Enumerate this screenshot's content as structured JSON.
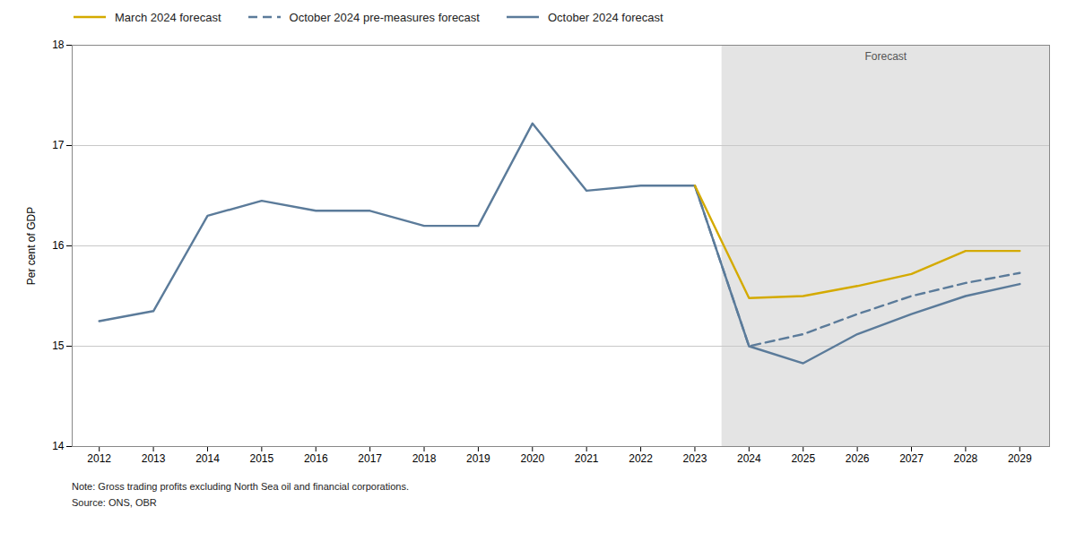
{
  "chart_data": {
    "type": "line",
    "ylabel": "Per cent of GDP",
    "note": "Note: Gross trading profits excluding North Sea oil and financial corporations.",
    "source": "Source: ONS, OBR",
    "x": [
      2012,
      2013,
      2014,
      2015,
      2016,
      2017,
      2018,
      2019,
      2020,
      2021,
      2022,
      2023,
      2024,
      2025,
      2026,
      2027,
      2028,
      2029
    ],
    "series": [
      {
        "name": "March 2024 forecast",
        "color": "#d4aa00",
        "line_style": "solid",
        "values": [
          null,
          null,
          null,
          null,
          null,
          null,
          null,
          null,
          null,
          null,
          null,
          16.6,
          15.48,
          15.5,
          15.6,
          15.72,
          15.95,
          15.95
        ]
      },
      {
        "name": "October 2024 pre-measures forecast",
        "color": "#5b7b9a",
        "line_style": "dashed",
        "values": [
          null,
          null,
          null,
          null,
          null,
          null,
          null,
          null,
          null,
          null,
          null,
          16.6,
          15.0,
          15.12,
          15.32,
          15.5,
          15.63,
          15.73
        ]
      },
      {
        "name": "October 2024 forecast",
        "color": "#5b7b9a",
        "line_style": "solid",
        "values": [
          15.25,
          15.35,
          16.3,
          16.45,
          16.35,
          16.35,
          16.2,
          16.2,
          17.22,
          16.55,
          16.6,
          16.6,
          15.0,
          14.83,
          15.12,
          15.32,
          15.5,
          15.62
        ]
      }
    ],
    "shaded_region": {
      "x1": 2023.5,
      "x2": 2029.55,
      "color": "#e4e4e4",
      "label": "Forecast"
    },
    "xlim": [
      2011.5,
      2029.55
    ],
    "xticks": [
      2012,
      2013,
      2014,
      2015,
      2016,
      2017,
      2018,
      2019,
      2020,
      2021,
      2022,
      2023,
      2024,
      2025,
      2026,
      2027,
      2028,
      2029
    ],
    "ylim": [
      14,
      18
    ],
    "yticks": [
      14,
      15,
      16,
      17,
      18
    ],
    "grid": true,
    "legend": "upper left"
  }
}
